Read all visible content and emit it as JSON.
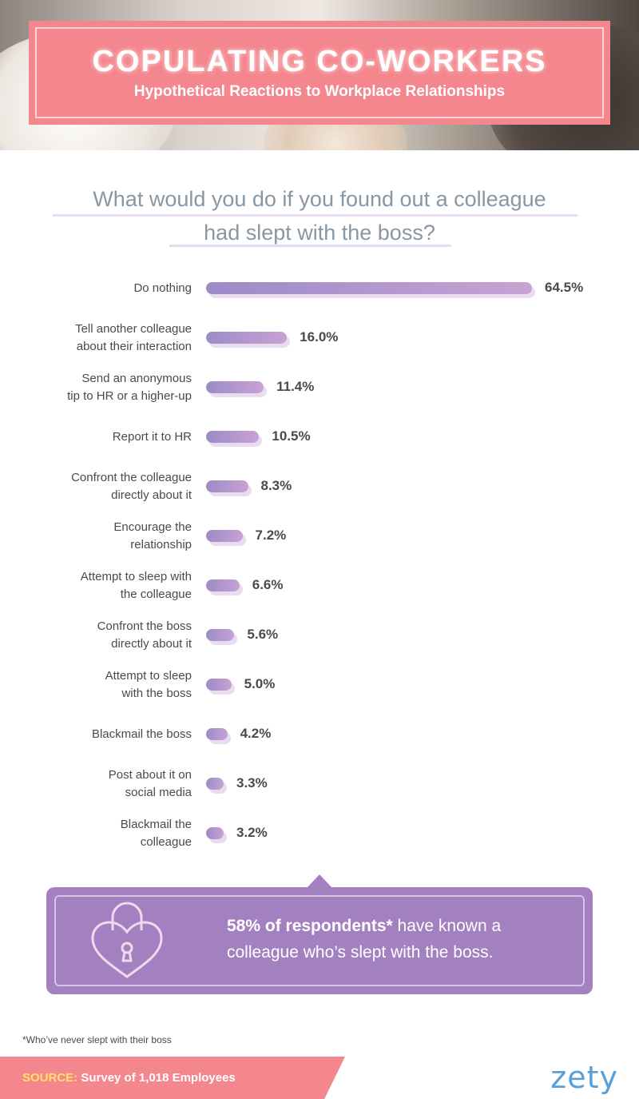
{
  "header": {
    "title": "COPULATING CO-WORKERS",
    "subtitle": "Hypothetical Reactions to Workplace Relationships"
  },
  "question": {
    "line1": "What would you do if you found out a colleague",
    "line2": "had slept with the boss?"
  },
  "chart_data": {
    "type": "bar",
    "orientation": "horizontal",
    "categories": [
      "Do nothing",
      "Tell another colleague about their interaction",
      "Send an anonymous tip to HR or a higher-up",
      "Report it to HR",
      "Confront the colleague directly about it",
      "Encourage the relationship",
      "Attempt to sleep with the colleague",
      "Confront the boss directly about it",
      "Attempt to sleep with the boss",
      "Blackmail the boss",
      "Post about it on social media",
      "Blackmail the colleague"
    ],
    "label_lines": [
      [
        "Do nothing"
      ],
      [
        "Tell another colleague",
        "about their interaction"
      ],
      [
        "Send an anonymous",
        "tip to HR or a higher-up"
      ],
      [
        "Report it to HR"
      ],
      [
        "Confront the colleague",
        "directly about it"
      ],
      [
        "Encourage the",
        "relationship"
      ],
      [
        "Attempt to sleep with",
        "the colleague"
      ],
      [
        "Confront the boss",
        "directly about it"
      ],
      [
        "Attempt to sleep",
        "with the boss"
      ],
      [
        "Blackmail the boss"
      ],
      [
        "Post about it on",
        "social media"
      ],
      [
        "Blackmail the",
        "colleague"
      ]
    ],
    "values": [
      64.5,
      16.0,
      11.4,
      10.5,
      8.3,
      7.2,
      6.6,
      5.6,
      5.0,
      4.2,
      3.3,
      3.2
    ],
    "value_labels": [
      "64.5%",
      "16.0%",
      "11.4%",
      "10.5%",
      "8.3%",
      "7.2%",
      "6.6%",
      "5.6%",
      "5.0%",
      "4.2%",
      "3.3%",
      "3.2%"
    ],
    "xlim": [
      0,
      64.5
    ],
    "grid": false,
    "legend": "none",
    "colors": {
      "bar_start": "#9c8bc7",
      "bar_end": "#c8a2d3",
      "bar_shadow": "#eadcf0"
    }
  },
  "callout": {
    "bold": "58% of respondents*",
    "rest_line1": " have known a",
    "line2": "colleague who’s slept with the boss.",
    "icon": "heart-padlock-icon",
    "color": "#a381c1"
  },
  "footnote": "*Who’ve never slept with their boss",
  "source": {
    "key": "SOURCE:",
    "value": "Survey of 1,018 Employees"
  },
  "logo": "zety",
  "colors": {
    "accent_pink": "#f4868d",
    "question_text": "#8996a3",
    "logo_blue": "#5aa0d6"
  }
}
